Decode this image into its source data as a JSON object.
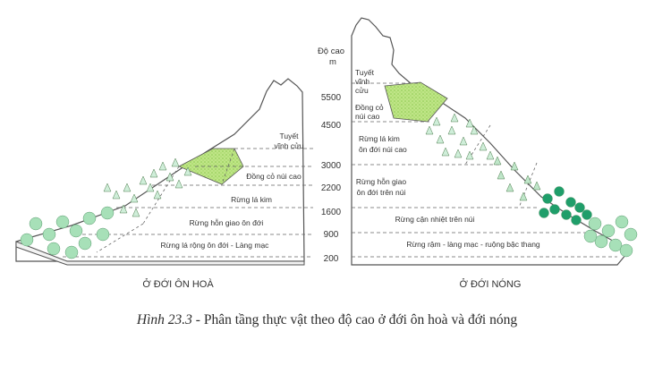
{
  "axis": {
    "title_line1": "Độ cao",
    "title_line2": "m"
  },
  "altitudes": [
    "5500",
    "4500",
    "3000",
    "2200",
    "1600",
    "900",
    "200"
  ],
  "temperate": {
    "region_label": "Ở ĐỚI ÔN HOÀ",
    "snow_line1": "Tuyết",
    "snow_line2": "vĩnh cửu",
    "alpine_meadow": "Đồng cỏ núi cao",
    "coniferous": "Rừng lá kim",
    "mixed": "Rừng hỗn giao ôn đới",
    "broadleaf": "Rừng lá rộng ôn đới - Làng mạc"
  },
  "tropical": {
    "region_label": "Ở ĐỚI NÓNG",
    "snow_line1": "Tuyết",
    "snow_line2": "vĩnh",
    "snow_line3": "cửu",
    "meadow_line1": "Đồng cỏ",
    "meadow_line2": "núi cao",
    "conifer_line1": "Rừng lá kim",
    "conifer_line2": "ôn đới núi cao",
    "mixed_line1": "Rừng hỗn giao",
    "mixed_line2": "ôn đới trên núi",
    "subtropical": "Rừng cận nhiệt trên núi",
    "lowland": "Rừng rậm - làng mạc - ruộng bậc thang"
  },
  "caption": {
    "figure": "Hình 23.3",
    "text": " - Phân tầng thực vật theo độ cao ở đới ôn hoà và đới nóng"
  },
  "colors": {
    "meadow": "#b5e07a",
    "tree_light": "#a7e0b8",
    "tree_dark": "#1f9e6a",
    "outline": "#555555"
  }
}
